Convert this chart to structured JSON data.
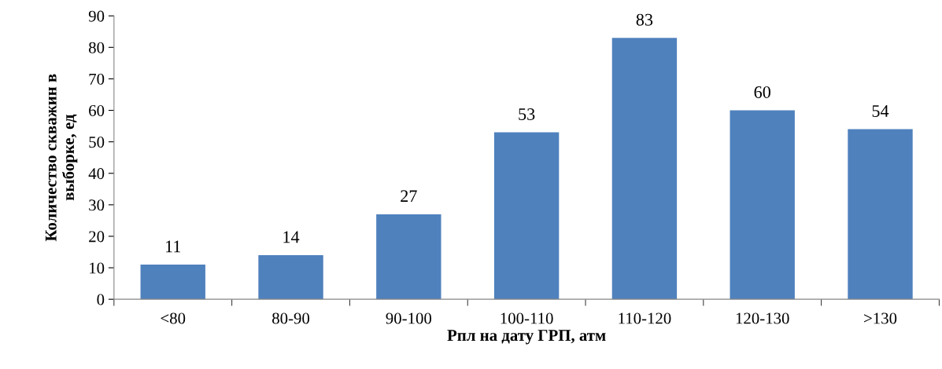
{
  "chart_data": {
    "type": "bar",
    "categories": [
      "<80",
      "80-90",
      "90-100",
      "100-110",
      "110-120",
      "120-130",
      ">130"
    ],
    "values": [
      11,
      14,
      27,
      53,
      83,
      60,
      54
    ],
    "color": "#4f81bd",
    "xlabel": "Рпл на дату ГРП, атм",
    "ylabel": "Количество скважин в\nвыборке, ед",
    "ylim": [
      0,
      90
    ],
    "yticks": [
      0,
      10,
      20,
      30,
      40,
      50,
      60,
      70,
      80,
      90
    ],
    "data_labels": true,
    "grid": false
  }
}
